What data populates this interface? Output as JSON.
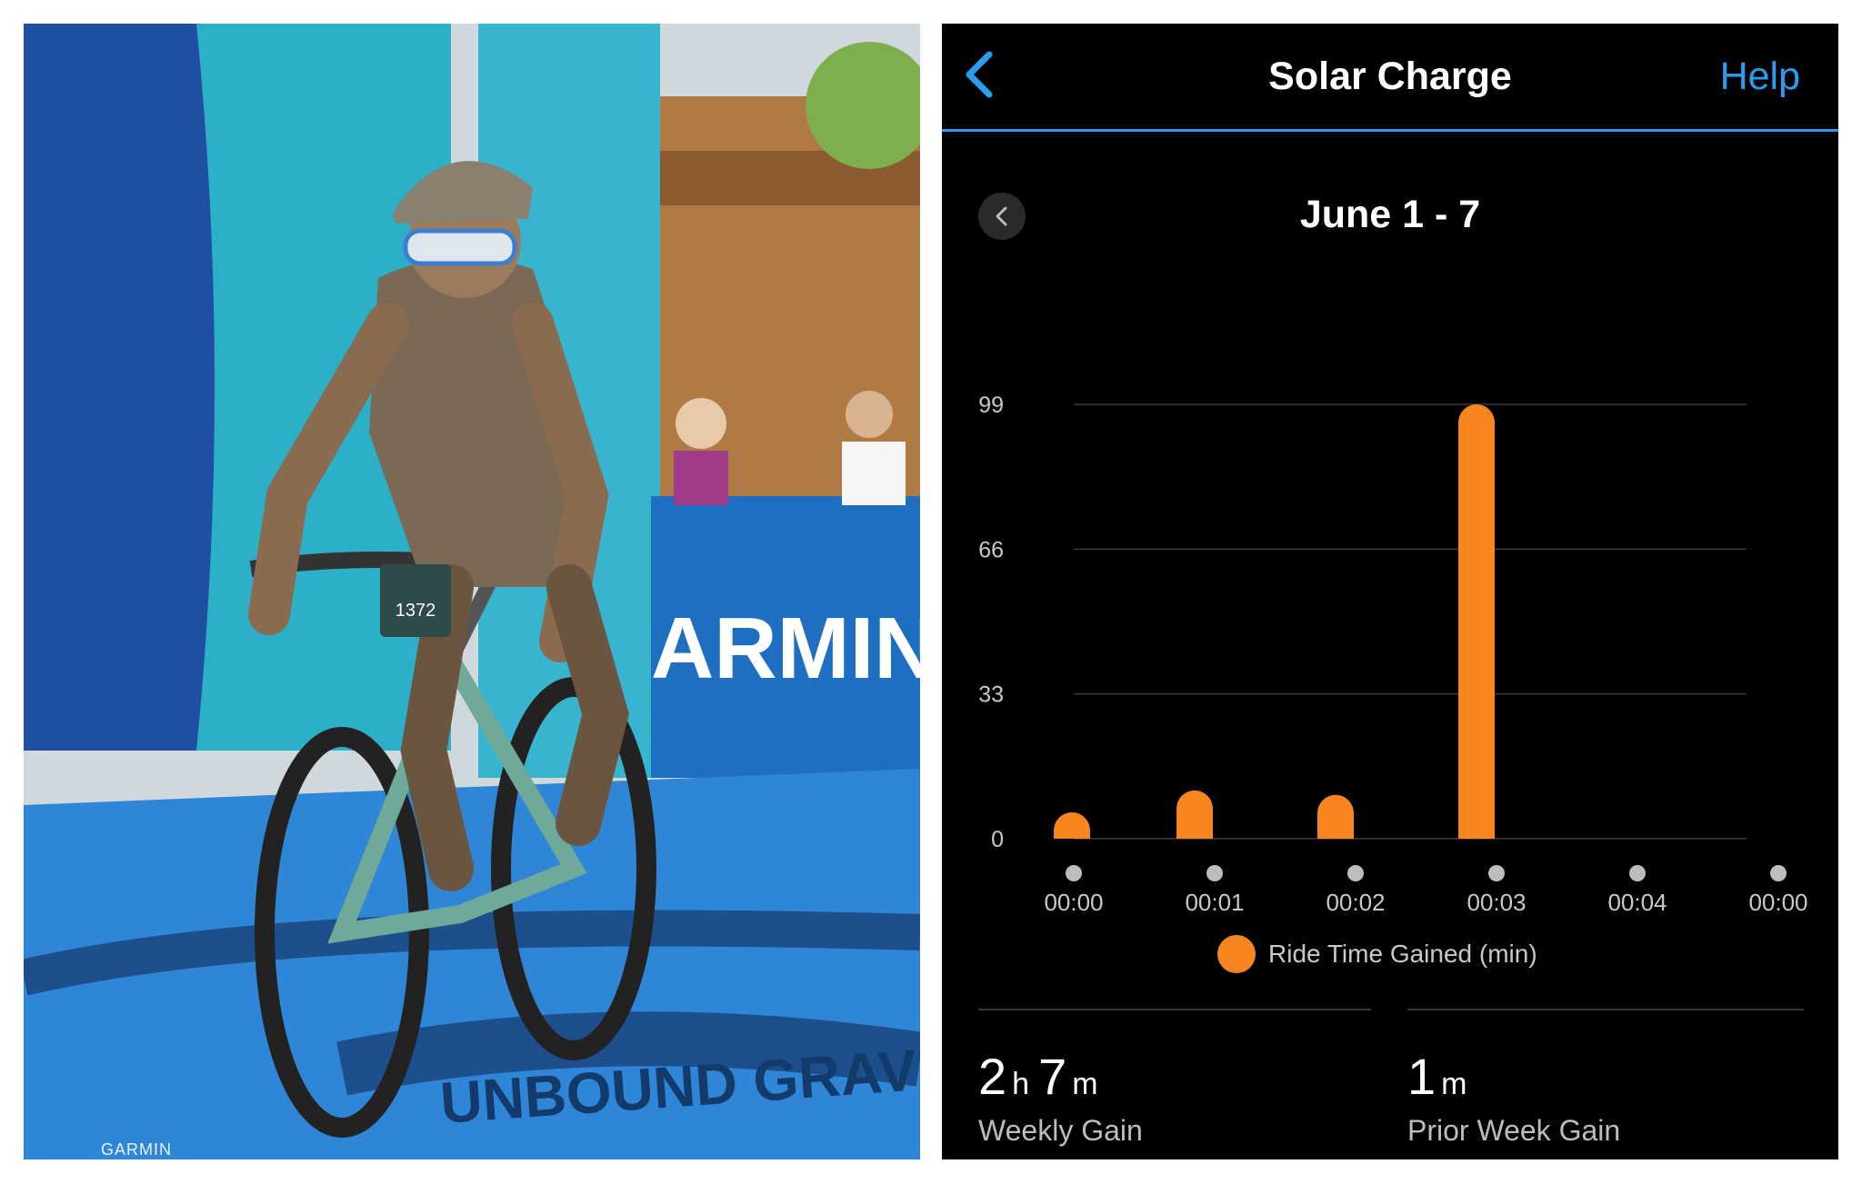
{
  "photo": {
    "bib_number": "1372",
    "banner_text": "ARMIN",
    "credit": "GARMIN",
    "course_logo_text": "UNBOUND GRAVEL"
  },
  "header": {
    "title": "Solar Charge",
    "help_label": "Help",
    "back_icon": "chevron-left-icon",
    "accent_color": "#2a9df0"
  },
  "range": {
    "label": "June 1 - 7",
    "prev_icon": "chevron-left-icon"
  },
  "chart_data": {
    "type": "bar",
    "categories": [
      "00:00",
      "00:01",
      "00:02",
      "00:03",
      "00:04",
      "00:00"
    ],
    "values": [
      6,
      11,
      10,
      99,
      0,
      0
    ],
    "y_ticks": [
      0,
      33,
      66,
      99
    ],
    "ylim": [
      0,
      99
    ],
    "grid": true,
    "bar_color": "#f7861f",
    "legend": "Ride Time Gained (min)",
    "legend_position": "bottom"
  },
  "stats": {
    "weekly": {
      "hours": "2",
      "hours_unit": "h",
      "minutes": "7",
      "minutes_unit": "m",
      "label": "Weekly Gain"
    },
    "prior": {
      "minutes": "1",
      "minutes_unit": "m",
      "label": "Prior Week Gain"
    }
  }
}
